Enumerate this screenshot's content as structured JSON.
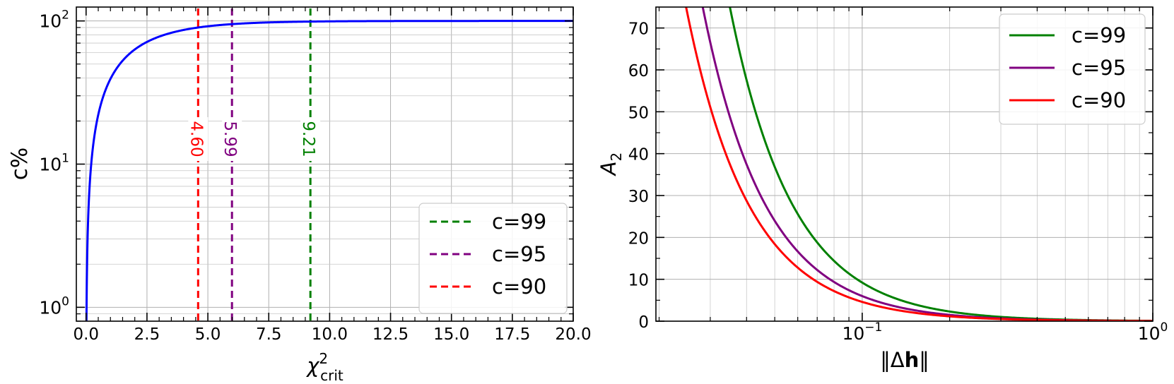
{
  "chart_data": [
    {
      "type": "line",
      "xlabel": "χ²crit",
      "xlabel_main": "χ",
      "xlabel_sup": "2",
      "xlabel_sub": "crit",
      "ylabel": "c%",
      "xlim": [
        -0.4,
        20.0
      ],
      "ylim": [
        0.8,
        125
      ],
      "yscale": "log",
      "grid": true,
      "xticks": [
        0.0,
        2.5,
        5.0,
        7.5,
        10.0,
        12.5,
        15.0,
        17.5,
        20.0
      ],
      "xtick_labels": [
        "0.0",
        "2.5",
        "5.0",
        "7.5",
        "10.0",
        "12.5",
        "15.0",
        "17.5",
        "20.0"
      ],
      "ytick_labels": [
        {
          "value": 1,
          "base": "10",
          "exp": "0"
        },
        {
          "value": 10,
          "base": "10",
          "exp": "1"
        },
        {
          "value": 100,
          "base": "10",
          "exp": "2"
        }
      ],
      "curve": {
        "color": "#0000ff",
        "function": "cdf of chi-square with 2 degrees of freedom, in percent"
      },
      "vlines": [
        {
          "name": "c=99",
          "x": 9.21,
          "label": "9.21",
          "color": "#008000"
        },
        {
          "name": "c=95",
          "x": 5.99,
          "label": "5.99",
          "color": "#800080"
        },
        {
          "name": "c=90",
          "x": 4.6,
          "label": "4.60",
          "color": "#ff0000"
        }
      ],
      "legend_position": "lower-right"
    },
    {
      "type": "line",
      "xlabel": "‖Δh‖",
      "xlabel_parts": [
        "‖Δ",
        "h",
        "‖"
      ],
      "ylabel": "A2",
      "ylabel_main": "A",
      "ylabel_sub": "2",
      "xscale": "log",
      "xlim": [
        0.0195,
        1.0
      ],
      "ylim": [
        0,
        75
      ],
      "grid": true,
      "xtick_labels": [
        {
          "value": 0.1,
          "base": "10",
          "exp": "−1"
        },
        {
          "value": 1.0,
          "base": "10",
          "exp": "0"
        }
      ],
      "yticks": [
        0,
        10,
        20,
        30,
        40,
        50,
        60,
        70
      ],
      "series": [
        {
          "name": "c=99",
          "color": "#008000",
          "chi2": 9.21,
          "x": [
            0.0347,
            0.05,
            0.1,
            0.2,
            0.5,
            1.0
          ],
          "y": [
            76.5,
            36.8,
            9.21,
            2.3,
            0.37,
            0.092
          ]
        },
        {
          "name": "c=95",
          "color": "#800080",
          "chi2": 5.99,
          "x": [
            0.028,
            0.05,
            0.1,
            0.2,
            0.5,
            1.0
          ],
          "y": [
            76.4,
            24.0,
            5.99,
            1.5,
            0.24,
            0.06
          ]
        },
        {
          "name": "c=90",
          "color": "#ff0000",
          "chi2": 4.6,
          "x": [
            0.0245,
            0.05,
            0.1,
            0.2,
            0.5,
            1.0
          ],
          "y": [
            76.6,
            18.4,
            4.6,
            1.15,
            0.18,
            0.046
          ]
        }
      ],
      "legend_position": "top-right"
    }
  ]
}
